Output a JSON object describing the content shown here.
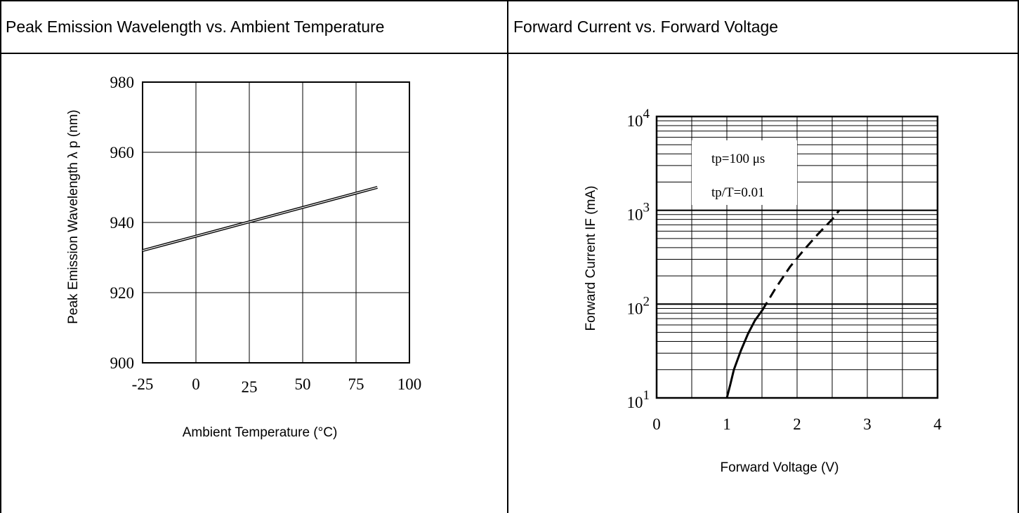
{
  "panels": {
    "left_title": "Peak Emission Wavelength vs. Ambient Temperature",
    "right_title": "Forward Current vs. Forward Voltage"
  },
  "chart_data": [
    {
      "type": "line",
      "title": "Peak Emission Wavelength vs. Ambient Temperature",
      "xlabel": "Ambient Temperature (°C)",
      "ylabel": "Peak Emission Wavelength  λ p (nm)",
      "xlim": [
        -25,
        100
      ],
      "ylim": [
        900,
        980
      ],
      "x_ticks": [
        -25,
        0,
        25,
        50,
        75,
        100
      ],
      "y_ticks": [
        900,
        920,
        940,
        960,
        980
      ],
      "grid": true,
      "series": [
        {
          "x": [
            -25,
            85
          ],
          "y": [
            932,
            950
          ]
        }
      ]
    },
    {
      "type": "line",
      "title": "Forward Current vs. Forward Voltage",
      "xlabel": "Forward Voltage (V)",
      "ylabel": "Forward Current IF (mA)",
      "xlim": [
        0,
        4
      ],
      "ylim": [
        10,
        10000
      ],
      "y_scale": "log",
      "x_ticks": [
        0,
        1,
        2,
        3,
        4
      ],
      "y_ticks": [
        10,
        100,
        1000,
        10000
      ],
      "y_tick_labels": [
        {
          "base": "10",
          "exp": "1"
        },
        {
          "base": "10",
          "exp": "2"
        },
        {
          "base": "10",
          "exp": "3"
        },
        {
          "base": "10",
          "exp": "4"
        }
      ],
      "grid": true,
      "annotations": [
        "tp=100 μs",
        "tp/T=0.01"
      ],
      "series": [
        {
          "style": "solid",
          "x": [
            1.0,
            1.05,
            1.1,
            1.2,
            1.3,
            1.4,
            1.5
          ],
          "y": [
            10,
            14,
            20,
            32,
            48,
            67,
            85
          ]
        },
        {
          "style": "dashed",
          "x": [
            1.5,
            1.7,
            1.9,
            2.1,
            2.3,
            2.5,
            2.6
          ],
          "y": [
            85,
            150,
            250,
            380,
            560,
            800,
            1000
          ]
        }
      ]
    }
  ]
}
